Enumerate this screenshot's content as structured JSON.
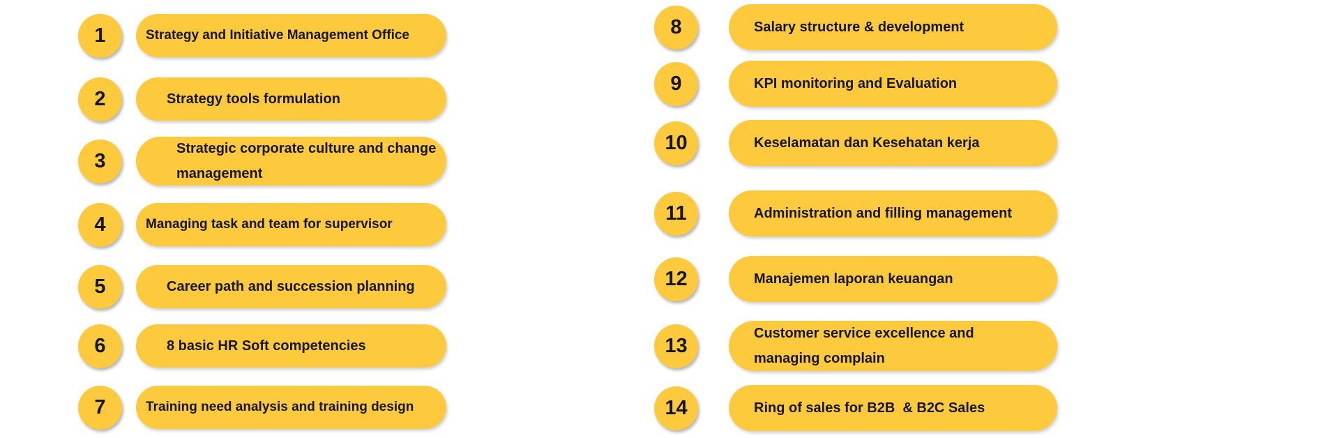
{
  "background_color": "#FFFFFF",
  "accent_color": "#FDCA3D",
  "text_color": "#161616",
  "columns": [
    {
      "name": "left",
      "items": [
        {
          "number": "1",
          "lines": [
            "Strategy and Initiative Management Office"
          ],
          "variant": "tight"
        },
        {
          "number": "2",
          "lines": [
            "Strategy tools formulation"
          ],
          "variant": ""
        },
        {
          "number": "3",
          "lines": [
            "Strategic corporate culture and change",
            "management"
          ],
          "variant": "indent"
        },
        {
          "number": "4",
          "lines": [
            "Managing task and team for supervisor"
          ],
          "variant": "tight"
        },
        {
          "number": "5",
          "lines": [
            "Career path and succession planning"
          ],
          "variant": ""
        },
        {
          "number": "6",
          "lines": [
            "8 basic HR Soft competencies"
          ],
          "variant": ""
        },
        {
          "number": "7",
          "lines": [
            "Training need analysis and training design"
          ],
          "variant": "tight"
        }
      ]
    },
    {
      "name": "right",
      "items": [
        {
          "number": "8",
          "lines": [
            "Salary structure & development"
          ],
          "variant": ""
        },
        {
          "number": "9",
          "lines": [
            "KPI monitoring and Evaluation"
          ],
          "variant": ""
        },
        {
          "number": "10",
          "lines": [
            "Keselamatan dan Kesehatan kerja"
          ],
          "variant": ""
        },
        {
          "number": "11",
          "lines": [
            "Administration and filling management"
          ],
          "variant": ""
        },
        {
          "number": "12",
          "lines": [
            "Manajemen laporan keuangan"
          ],
          "variant": ""
        },
        {
          "number": "13",
          "lines": [
            "Customer service excellence and",
            "managing complain"
          ],
          "variant": ""
        },
        {
          "number": "14",
          "lines": [
            "Ring of sales for B2B  & B2C Sales"
          ],
          "variant": ""
        }
      ]
    }
  ]
}
